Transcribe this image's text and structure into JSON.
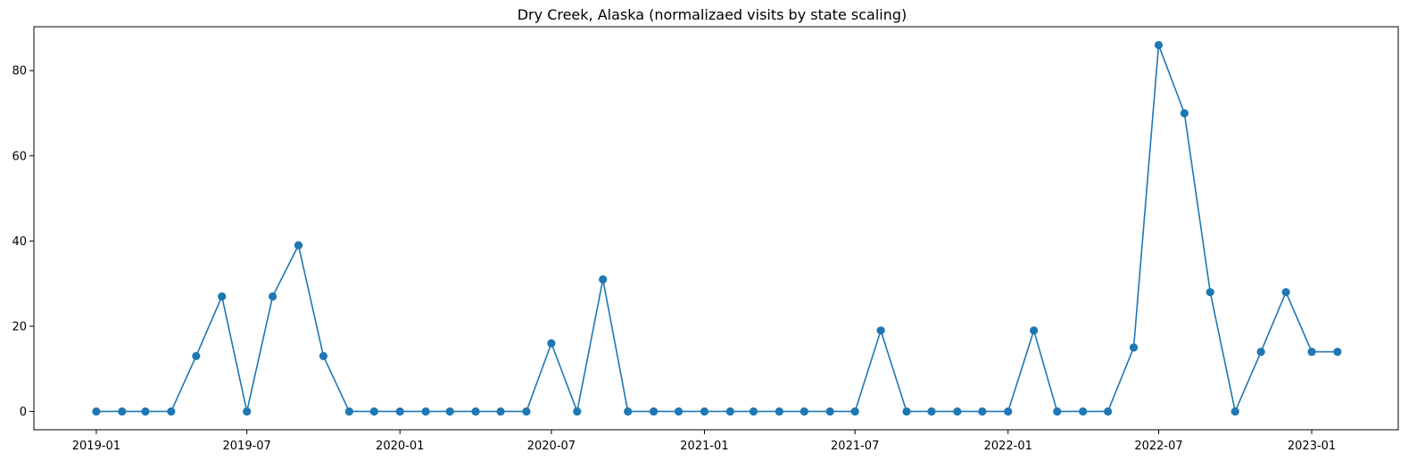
{
  "chart_data": {
    "type": "line",
    "title": "Dry Creek, Alaska (normalizaed visits by state scaling)",
    "xlabel": "",
    "ylabel": "",
    "x": [
      "2019-01",
      "2019-02",
      "2019-03",
      "2019-04",
      "2019-05",
      "2019-06",
      "2019-07",
      "2019-08",
      "2019-09",
      "2019-10",
      "2019-11",
      "2019-12",
      "2020-01",
      "2020-02",
      "2020-03",
      "2020-04",
      "2020-05",
      "2020-06",
      "2020-07",
      "2020-08",
      "2020-09",
      "2020-10",
      "2020-11",
      "2020-12",
      "2021-01",
      "2021-02",
      "2021-03",
      "2021-04",
      "2021-05",
      "2021-06",
      "2021-07",
      "2021-08",
      "2021-09",
      "2021-10",
      "2021-11",
      "2021-12",
      "2022-01",
      "2022-02",
      "2022-03",
      "2022-04",
      "2022-05",
      "2022-06",
      "2022-07",
      "2022-08",
      "2022-09",
      "2022-10",
      "2022-11",
      "2022-12",
      "2023-01",
      "2023-02"
    ],
    "series": [
      {
        "values": [
          0,
          0,
          0,
          0,
          13,
          27,
          0,
          27,
          39,
          13,
          0,
          0,
          0,
          0,
          0,
          0,
          0,
          0,
          16,
          0,
          31,
          0,
          0,
          0,
          0,
          0,
          0,
          0,
          0,
          0,
          0,
          19,
          0,
          0,
          0,
          0,
          0,
          19,
          0,
          0,
          0,
          15,
          86,
          70,
          28,
          0,
          14,
          28,
          14,
          14
        ]
      }
    ],
    "xticks": [
      "2019-01",
      "2019-07",
      "2020-01",
      "2020-07",
      "2021-01",
      "2021-07",
      "2022-01",
      "2022-07",
      "2023-01"
    ],
    "yticks": [
      0,
      20,
      40,
      60,
      80
    ],
    "xlim": [
      "2018-10-18",
      "2023-04-15"
    ],
    "ylim": [
      -4.3,
      90.3
    ],
    "grid": false,
    "legend": "none",
    "line_color": "#1f77b4"
  }
}
